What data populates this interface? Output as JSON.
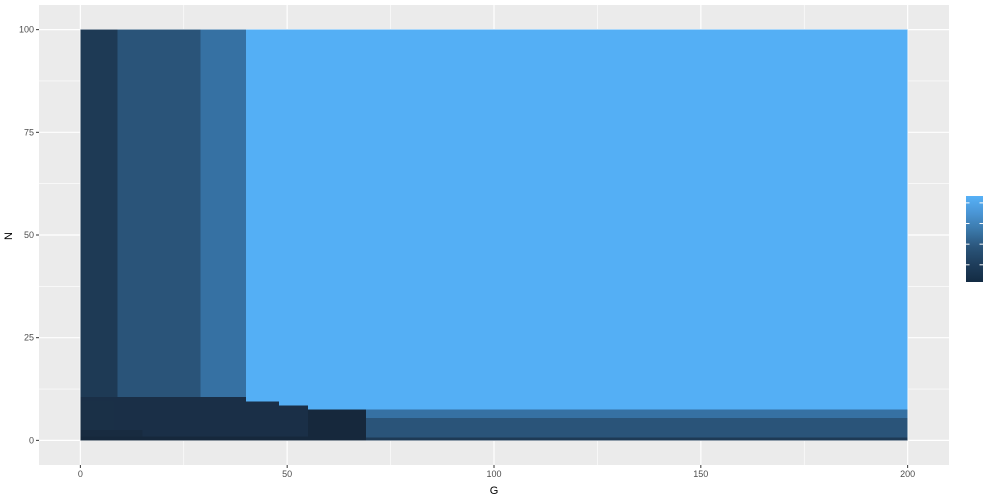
{
  "chart_data": {
    "type": "heatmap",
    "title": "",
    "xlabel": "G",
    "ylabel": "N",
    "xlim": [
      -10,
      210
    ],
    "ylim": [
      -6,
      106
    ],
    "x_ticks": [
      0,
      50,
      100,
      150,
      200
    ],
    "x_tick_labels": [
      "0",
      "50",
      "100",
      "150",
      "200"
    ],
    "y_ticks": [
      0,
      25,
      50,
      75,
      100
    ],
    "y_tick_labels": [
      "0",
      "25",
      "50",
      "75",
      "100"
    ],
    "grid": true,
    "legend": {
      "type": "colorbar",
      "placement": "right",
      "labels": []
    },
    "colors": {
      "panel_background": "#ebebeb",
      "grid": "#ffffff",
      "darkest": "#16283c",
      "darker": "#1a2f47",
      "dark": "#1e3a55",
      "mid_dark": "#2a5479",
      "mid": "#3671a3",
      "light": "#54aff5"
    },
    "cells": [
      {
        "x0": 0,
        "x1": 9,
        "y0": 10,
        "y1": 100,
        "fill": "#1e3a55"
      },
      {
        "x0": 9,
        "x1": 29,
        "y0": 10,
        "y1": 100,
        "fill": "#2a5479"
      },
      {
        "x0": 29,
        "x1": 40,
        "y0": 10,
        "y1": 100,
        "fill": "#3671a3"
      },
      {
        "x0": 40,
        "x1": 200,
        "y0": 7.5,
        "y1": 100,
        "fill": "#54aff5"
      },
      {
        "x0": 0,
        "x1": 40,
        "y0": 0,
        "y1": 10.5,
        "fill": "#1a2f47"
      },
      {
        "x0": 40,
        "x1": 48,
        "y0": 0,
        "y1": 9.5,
        "fill": "#1a2f47"
      },
      {
        "x0": 48,
        "x1": 55,
        "y0": 0,
        "y1": 8.5,
        "fill": "#1a2f47"
      },
      {
        "x0": 55,
        "x1": 69,
        "y0": 0,
        "y1": 7.5,
        "fill": "#16283c"
      },
      {
        "x0": 0,
        "x1": 8,
        "y0": 0,
        "y1": 9.5,
        "fill": "#1a3047"
      },
      {
        "x0": 0,
        "x1": 15,
        "y0": 0,
        "y1": 2.5,
        "fill": "#182b40"
      },
      {
        "x0": 0,
        "x1": 69,
        "y0": 0,
        "y1": 1,
        "fill": "#16283c"
      },
      {
        "x0": 69,
        "x1": 200,
        "y0": 5.5,
        "y1": 7.5,
        "fill": "#3671a3"
      },
      {
        "x0": 69,
        "x1": 200,
        "y0": 0.75,
        "y1": 5.5,
        "fill": "#2a5479"
      },
      {
        "x0": 69,
        "x1": 200,
        "y0": 0,
        "y1": 0.75,
        "fill": "#1e3a55"
      }
    ],
    "colorbar_gradient": [
      "#132b43",
      "#1e3d5b",
      "#2a5479",
      "#3a77a8",
      "#4a95d4",
      "#56b1f7"
    ]
  }
}
